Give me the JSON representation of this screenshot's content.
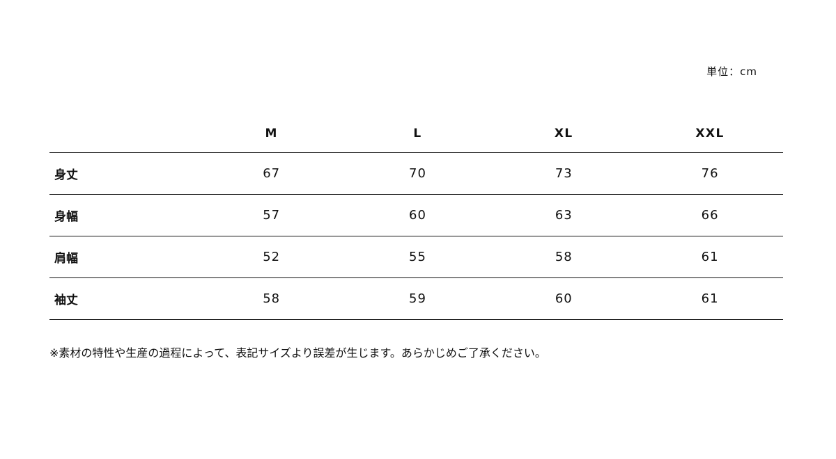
{
  "unit_label": "単位：cm",
  "table": {
    "headers": [
      "",
      "M",
      "L",
      "XL",
      "XXL"
    ],
    "rows": [
      {
        "label": "身丈",
        "values": [
          "67",
          "70",
          "73",
          "76"
        ]
      },
      {
        "label": "身幅",
        "values": [
          "57",
          "60",
          "63",
          "66"
        ]
      },
      {
        "label": "肩幅",
        "values": [
          "52",
          "55",
          "58",
          "61"
        ]
      },
      {
        "label": "袖丈",
        "values": [
          "58",
          "59",
          "60",
          "61"
        ]
      }
    ]
  },
  "note": "※素材の特性や生産の過程によって、表記サイズより誤差が生じます。あらかじめご了承ください。"
}
